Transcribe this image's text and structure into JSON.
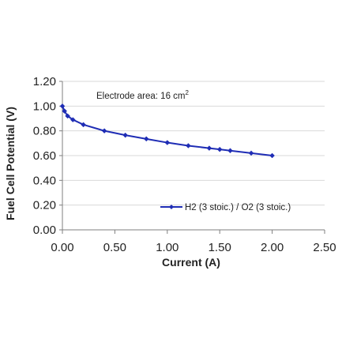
{
  "chart_data": {
    "type": "line",
    "title": "",
    "xlabel": "Current (A)",
    "ylabel": "Fuel Cell Potential (V)",
    "xlim": [
      0,
      2.5
    ],
    "ylim": [
      0,
      1.2
    ],
    "x_ticks": [
      "0.00",
      "0.50",
      "1.00",
      "1.50",
      "2.00",
      "2.50"
    ],
    "y_ticks": [
      "0.00",
      "0.20",
      "0.40",
      "0.60",
      "0.80",
      "1.00",
      "1.20"
    ],
    "grid": true,
    "legend_position": "lower-right",
    "annotation": {
      "text": "Electrode area: 16 cm",
      "superscript": "2"
    },
    "series": [
      {
        "name": "H2 (3 stoic.) / O2 (3 stoic.)",
        "color": "#1f2db5",
        "marker": "diamond",
        "x": [
          0,
          0.02,
          0.05,
          0.1,
          0.2,
          0.4,
          0.6,
          0.8,
          1.0,
          1.2,
          1.4,
          1.5,
          1.6,
          1.8,
          2.0
        ],
        "y": [
          1.0,
          0.96,
          0.92,
          0.89,
          0.85,
          0.8,
          0.765,
          0.735,
          0.705,
          0.68,
          0.66,
          0.65,
          0.64,
          0.62,
          0.6
        ]
      }
    ]
  }
}
